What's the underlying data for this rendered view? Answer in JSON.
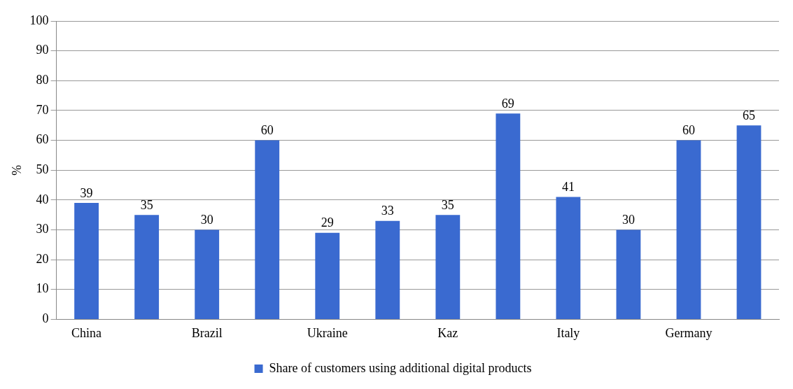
{
  "chart_data": {
    "type": "bar",
    "ylabel": "%",
    "categories": [
      "China",
      null,
      "Brazil",
      null,
      "Ukraine",
      null,
      "Kaz",
      null,
      "Italy",
      null,
      "Germany",
      null
    ],
    "series": [
      {
        "name": "Share of customers using additional digital products",
        "color": "#3a6ad0",
        "values": [
          39,
          35,
          30,
          60,
          29,
          33,
          35,
          69,
          41,
          30,
          60,
          65
        ]
      }
    ],
    "ylim": [
      0,
      100
    ],
    "yticks": [
      0,
      10,
      20,
      30,
      40,
      50,
      60,
      70,
      80,
      90,
      100
    ],
    "grid": "y",
    "legend": "bottom",
    "data_labels": true
  }
}
